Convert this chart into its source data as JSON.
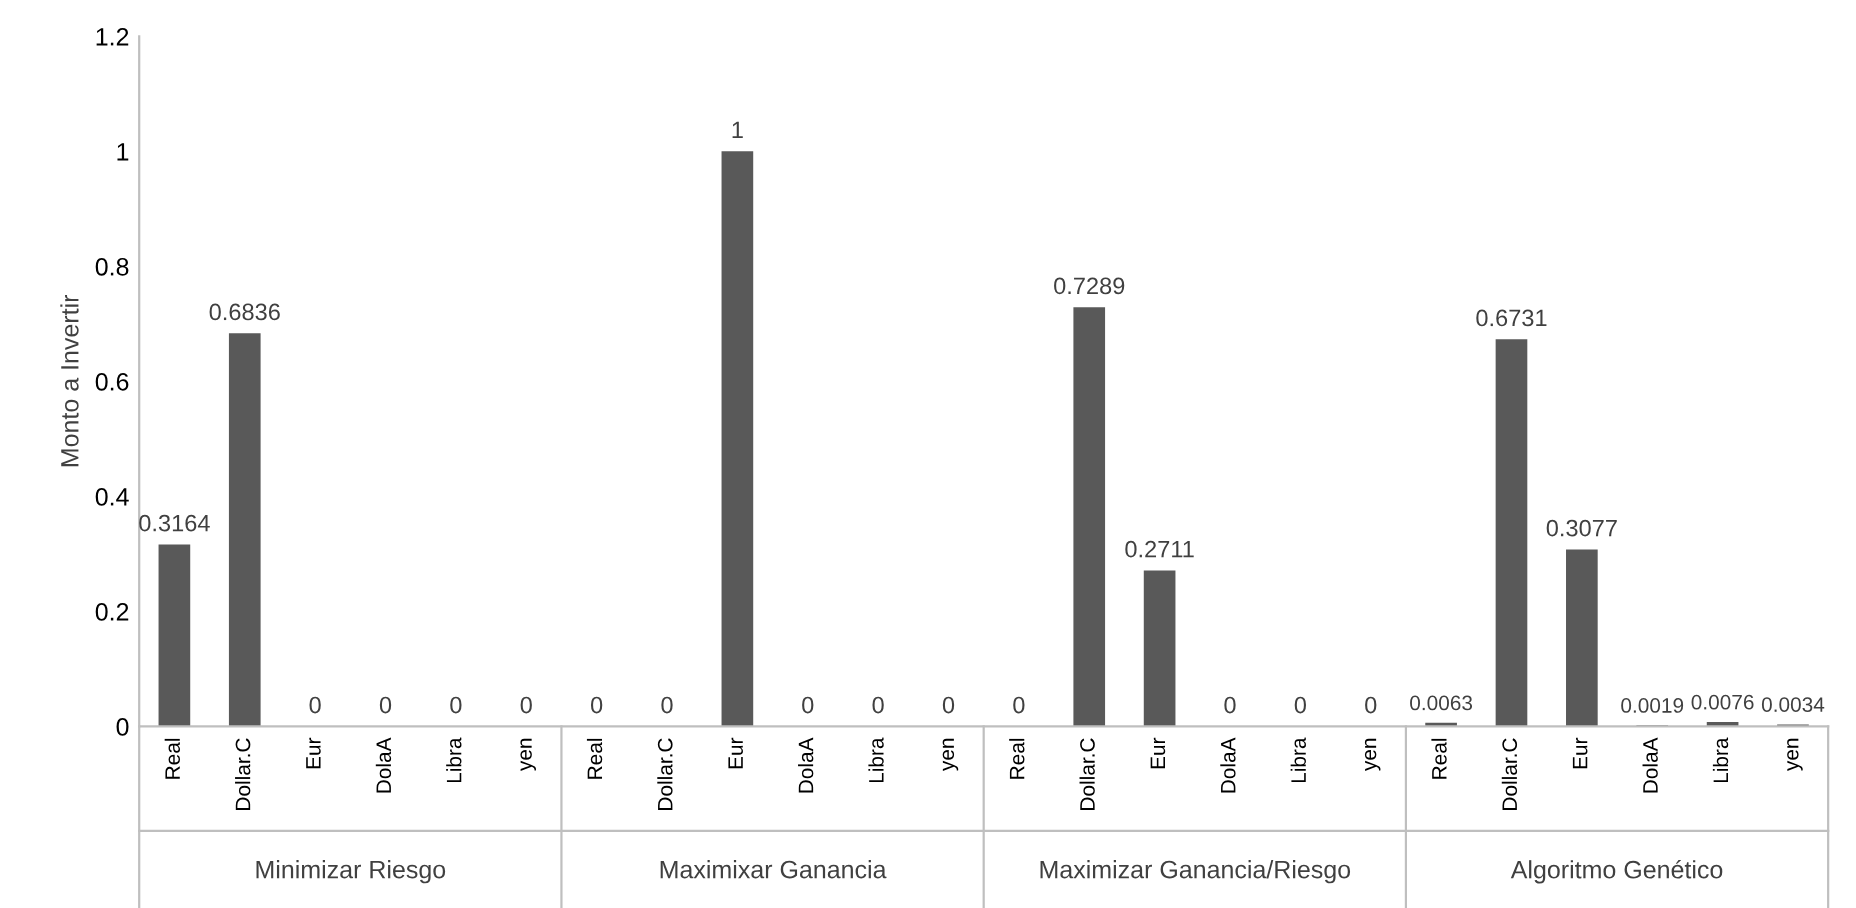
{
  "chart_data": {
    "type": "bar",
    "ylabel": "Monto a Invertir",
    "categories": [
      "Real",
      "Dollar.C",
      "Eur",
      "DolaA",
      "Libra",
      "yen",
      "Real",
      "Dollar.C",
      "Eur",
      "DolaA",
      "Libra",
      "yen",
      "Real",
      "Dollar.C",
      "Eur",
      "DolaA",
      "Libra",
      "yen",
      "Real",
      "Dollar.C",
      "Eur",
      "DolaA",
      "Libra",
      "yen"
    ],
    "values": [
      0.3164,
      0.6836,
      0,
      0,
      0,
      0,
      0,
      0,
      1,
      0,
      0,
      0,
      0,
      0.7289,
      0.2711,
      0,
      0,
      0,
      0.0063,
      0.6731,
      0.3077,
      0.0019,
      0.0076,
      0.0034
    ],
    "color": "#595959",
    "ylim": [
      0,
      1.2
    ],
    "yticks": [
      0,
      0.2,
      0.4,
      0.6,
      0.8,
      1,
      1.2
    ],
    "data_labels": true,
    "grid": false,
    "legend": false,
    "annotations": [
      "Minimizar Riesgo",
      "Maximixar Ganancia",
      "Maximizar Ganancia/Riesgo",
      "Algoritmo Genético"
    ]
  }
}
